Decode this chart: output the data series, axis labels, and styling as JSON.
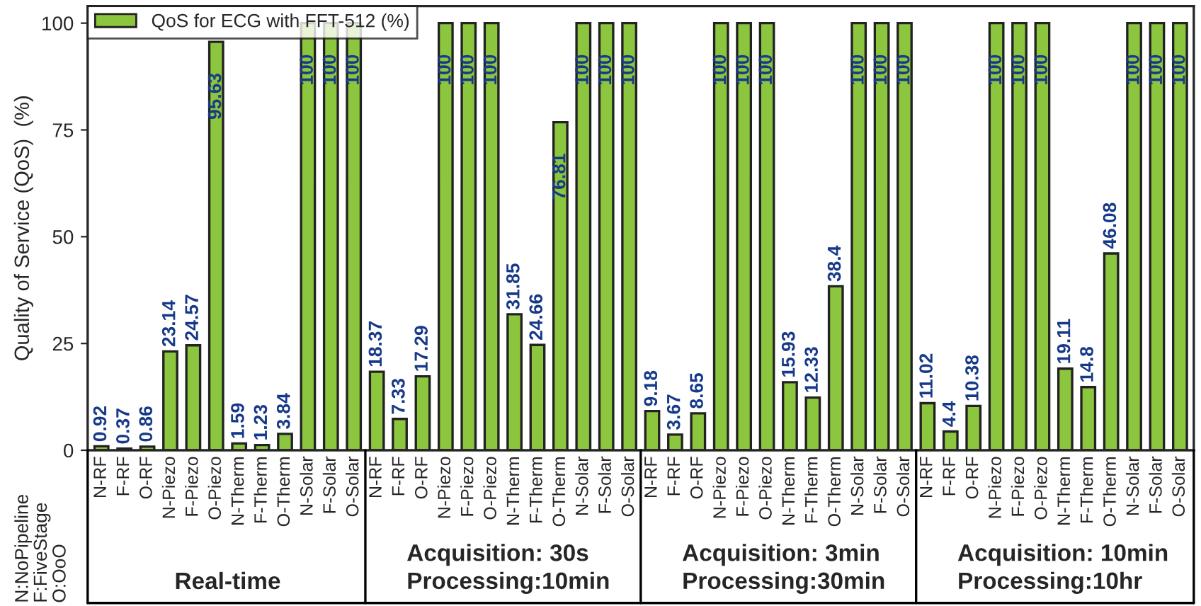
{
  "chart_data": {
    "type": "bar",
    "ylabel": "Quality of Service (QoS)  (%)",
    "categories": [
      "N-RF",
      "F-RF",
      "O-RF",
      "N-Piezo",
      "F-Piezo",
      "O-Piezo",
      "N-Therm",
      "F-Therm",
      "O-Therm",
      "N-Solar",
      "F-Solar",
      "O-Solar",
      "N-RF",
      "F-RF",
      "O-RF",
      "N-Piezo",
      "F-Piezo",
      "O-Piezo",
      "N-Therm",
      "F-Therm",
      "O-Therm",
      "N-Solar",
      "F-Solar",
      "O-Solar",
      "N-RF",
      "F-RF",
      "O-RF",
      "N-Piezo",
      "F-Piezo",
      "O-Piezo",
      "N-Therm",
      "F-Therm",
      "O-Therm",
      "N-Solar",
      "F-Solar",
      "O-Solar",
      "N-RF",
      "F-RF",
      "O-RF",
      "N-Piezo",
      "F-Piezo",
      "O-Piezo",
      "N-Therm",
      "F-Therm",
      "O-Therm",
      "N-Solar",
      "F-Solar",
      "O-Solar"
    ],
    "series": [
      {
        "name": "QoS for ECG with FFT-512 (%)",
        "color": "#8cc63f",
        "values": [
          0.92,
          0.37,
          0.86,
          23.14,
          24.57,
          95.63,
          1.59,
          1.23,
          3.84,
          100,
          100,
          100,
          18.37,
          7.33,
          17.29,
          100,
          100,
          100,
          31.85,
          24.66,
          76.81,
          100,
          100,
          100,
          9.18,
          3.67,
          8.65,
          100,
          100,
          100,
          15.93,
          12.33,
          38.4,
          100,
          100,
          100,
          11.02,
          4.4,
          10.38,
          100,
          100,
          100,
          19.11,
          14.8,
          46.08,
          100,
          100,
          100
        ]
      }
    ],
    "ylim": [
      0,
      104
    ],
    "yticks": [
      0,
      25,
      50,
      75,
      100
    ],
    "data_labels": true,
    "legend": "top left",
    "grid": false,
    "annotations": [
      "N:NoPipeline\nF:FiveStage\nO:OoO",
      "Real-time",
      "Acquisition: 30s\nProcessing:10min",
      "Acquisition: 3min\nProcessing:30min",
      "Acquisition: 10min\nProcessing:10hr"
    ]
  }
}
